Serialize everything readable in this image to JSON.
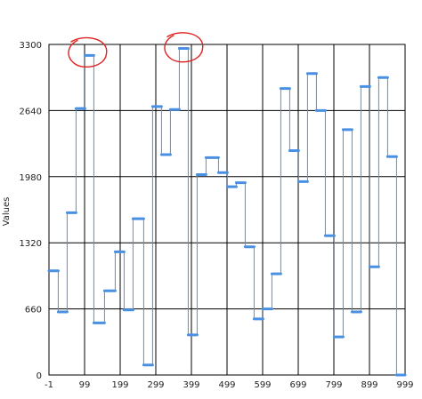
{
  "chart_data": {
    "type": "line",
    "ylabel": "Values",
    "xlabel": "",
    "xlim": [
      -1,
      999
    ],
    "ylim": [
      0,
      3300
    ],
    "x_ticks": [
      -1,
      99,
      199,
      299,
      399,
      499,
      599,
      699,
      799,
      899,
      999
    ],
    "y_ticks": [
      0,
      660,
      1320,
      1980,
      2640,
      3300
    ],
    "x_tick_labels": [
      "-1",
      "99",
      "199",
      "299",
      "399",
      "499",
      "599",
      "699",
      "799",
      "899",
      "999"
    ],
    "y_tick_labels": [
      "0",
      "660",
      "1320",
      "1980",
      "2640",
      "3300"
    ],
    "grid": true,
    "legend": "none",
    "line_color": "#4a90e2",
    "highlight_color": "#e02020",
    "series": [
      {
        "segments": [
          {
            "x0": -1,
            "x1": 25,
            "y": 1040
          },
          {
            "x0": 25,
            "x1": 50,
            "y": 630
          },
          {
            "x0": 50,
            "x1": 75,
            "y": 1620
          },
          {
            "x0": 75,
            "x1": 100,
            "y": 2660
          },
          {
            "x0": 100,
            "x1": 125,
            "y": 3190
          },
          {
            "x0": 125,
            "x1": 155,
            "y": 520
          },
          {
            "x0": 155,
            "x1": 185,
            "y": 840
          },
          {
            "x0": 185,
            "x1": 210,
            "y": 1230
          },
          {
            "x0": 210,
            "x1": 235,
            "y": 650
          },
          {
            "x0": 235,
            "x1": 265,
            "y": 1560
          },
          {
            "x0": 265,
            "x1": 290,
            "y": 100
          },
          {
            "x0": 290,
            "x1": 315,
            "y": 2680
          },
          {
            "x0": 315,
            "x1": 340,
            "y": 2200
          },
          {
            "x0": 340,
            "x1": 365,
            "y": 2650
          },
          {
            "x0": 365,
            "x1": 390,
            "y": 3260
          },
          {
            "x0": 390,
            "x1": 415,
            "y": 400
          },
          {
            "x0": 415,
            "x1": 440,
            "y": 2000
          },
          {
            "x0": 440,
            "x1": 475,
            "y": 2170
          },
          {
            "x0": 475,
            "x1": 500,
            "y": 2020
          },
          {
            "x0": 500,
            "x1": 525,
            "y": 1880
          },
          {
            "x0": 525,
            "x1": 550,
            "y": 1920
          },
          {
            "x0": 550,
            "x1": 575,
            "y": 1280
          },
          {
            "x0": 575,
            "x1": 600,
            "y": 560
          },
          {
            "x0": 600,
            "x1": 625,
            "y": 660
          },
          {
            "x0": 625,
            "x1": 650,
            "y": 1010
          },
          {
            "x0": 650,
            "x1": 675,
            "y": 2860
          },
          {
            "x0": 675,
            "x1": 700,
            "y": 2240
          },
          {
            "x0": 700,
            "x1": 725,
            "y": 1930
          },
          {
            "x0": 725,
            "x1": 750,
            "y": 3010
          },
          {
            "x0": 750,
            "x1": 775,
            "y": 2640
          },
          {
            "x0": 775,
            "x1": 800,
            "y": 1390
          },
          {
            "x0": 800,
            "x1": 825,
            "y": 380
          },
          {
            "x0": 825,
            "x1": 850,
            "y": 2450
          },
          {
            "x0": 850,
            "x1": 875,
            "y": 630
          },
          {
            "x0": 875,
            "x1": 900,
            "y": 2880
          },
          {
            "x0": 900,
            "x1": 925,
            "y": 1080
          },
          {
            "x0": 925,
            "x1": 950,
            "y": 2970
          },
          {
            "x0": 950,
            "x1": 975,
            "y": 2180
          },
          {
            "x0": 975,
            "x1": 999,
            "y": 0
          }
        ]
      }
    ],
    "annotations": [
      {
        "type": "freehand-circle",
        "x": 105,
        "y": 3200
      },
      {
        "type": "freehand-circle",
        "x": 375,
        "y": 3250
      }
    ]
  }
}
